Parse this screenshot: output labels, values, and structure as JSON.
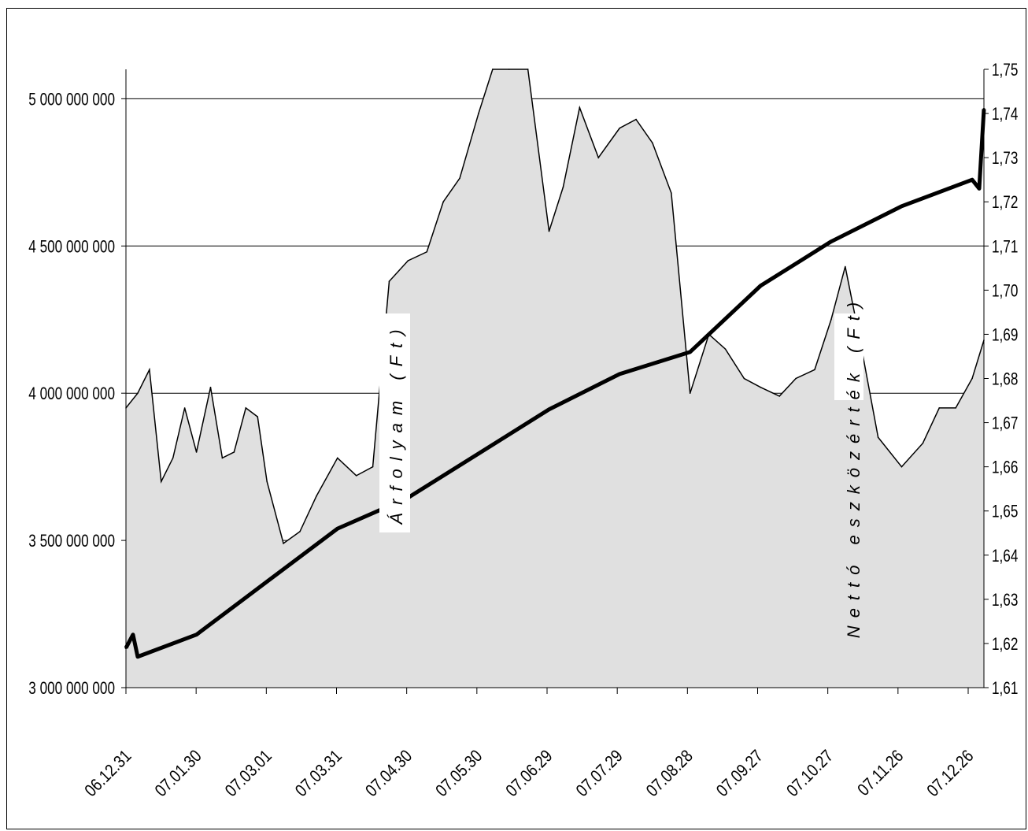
{
  "chart_data": {
    "type": "area",
    "title": "",
    "xlabel": "",
    "x_tick_labels": [
      "06.12.31",
      "07.01.30",
      "07.03.01",
      "07.03.31",
      "07.04.30",
      "07.05.30",
      "07.06.29",
      "07.07.29",
      "07.08.28",
      "07.09.27",
      "07.10.27",
      "07.11.26",
      "07.12.26"
    ],
    "left_axis": {
      "label": "Nettó eszközérték (Ft)",
      "ylim": [
        3000000000,
        5100000000
      ],
      "ticks": [
        "3 000 000 000",
        "3 500 000 000",
        "4 000 000 000",
        "4 500 000 000",
        "5 000 000 000"
      ]
    },
    "right_axis": {
      "label": "Árfolyam (Ft)",
      "ylim": [
        1.61,
        1.75
      ],
      "ticks": [
        "1,61",
        "1,62",
        "1,63",
        "1,64",
        "1,65",
        "1,66",
        "1,67",
        "1,68",
        "1,69",
        "1,70",
        "1,71",
        "1,72",
        "1,73",
        "1,74",
        "1,75"
      ]
    },
    "grid": "horizontal",
    "series": [
      {
        "name": "Nettó eszközérték (Ft)",
        "axis": "left",
        "style": "area",
        "color": "#e0e0e0",
        "x": [
          "2006-12-31",
          "2007-01-05",
          "2007-01-10",
          "2007-01-15",
          "2007-01-20",
          "2007-01-25",
          "2007-01-30",
          "2007-02-05",
          "2007-02-10",
          "2007-02-15",
          "2007-02-20",
          "2007-02-25",
          "2007-03-01",
          "2007-03-08",
          "2007-03-15",
          "2007-03-22",
          "2007-03-31",
          "2007-04-08",
          "2007-04-15",
          "2007-04-22",
          "2007-04-30",
          "2007-05-08",
          "2007-05-15",
          "2007-05-22",
          "2007-05-30",
          "2007-06-05",
          "2007-06-12",
          "2007-06-20",
          "2007-06-29",
          "2007-07-05",
          "2007-07-12",
          "2007-07-20",
          "2007-07-29",
          "2007-08-05",
          "2007-08-12",
          "2007-08-20",
          "2007-08-28",
          "2007-09-05",
          "2007-09-12",
          "2007-09-20",
          "2007-09-27",
          "2007-10-05",
          "2007-10-12",
          "2007-10-20",
          "2007-10-27",
          "2007-11-02",
          "2007-11-09",
          "2007-11-16",
          "2007-11-26",
          "2007-12-05",
          "2007-12-12",
          "2007-12-19",
          "2007-12-26",
          "2007-12-31"
        ],
        "values": [
          3950000000,
          4000000000,
          4080000000,
          3700000000,
          3780000000,
          3950000000,
          3800000000,
          4020000000,
          3780000000,
          3800000000,
          3950000000,
          3920000000,
          3700000000,
          3490000000,
          3530000000,
          3650000000,
          3780000000,
          3720000000,
          3750000000,
          4380000000,
          4450000000,
          4480000000,
          4650000000,
          4730000000,
          4950000000,
          5100000000,
          5100000000,
          5100000000,
          4550000000,
          4700000000,
          4970000000,
          4800000000,
          4900000000,
          4930000000,
          4850000000,
          4680000000,
          4000000000,
          4200000000,
          4150000000,
          4050000000,
          4020000000,
          3990000000,
          4050000000,
          4080000000,
          4250000000,
          4430000000,
          4150000000,
          3850000000,
          3750000000,
          3830000000,
          3950000000,
          3950000000,
          4050000000,
          4180000000
        ]
      },
      {
        "name": "Árfolyam (Ft)",
        "axis": "right",
        "style": "line",
        "color": "#000000",
        "x": [
          "2006-12-31",
          "2007-01-03",
          "2007-01-05",
          "2007-01-30",
          "2007-03-01",
          "2007-03-31",
          "2007-04-30",
          "2007-05-30",
          "2007-06-29",
          "2007-07-29",
          "2007-08-28",
          "2007-09-27",
          "2007-10-27",
          "2007-11-26",
          "2007-12-26",
          "2007-12-29",
          "2007-12-31"
        ],
        "values": [
          1.619,
          1.622,
          1.617,
          1.622,
          1.634,
          1.646,
          1.653,
          1.663,
          1.673,
          1.681,
          1.686,
          1.701,
          1.711,
          1.719,
          1.725,
          1.723,
          1.741
        ]
      }
    ]
  }
}
